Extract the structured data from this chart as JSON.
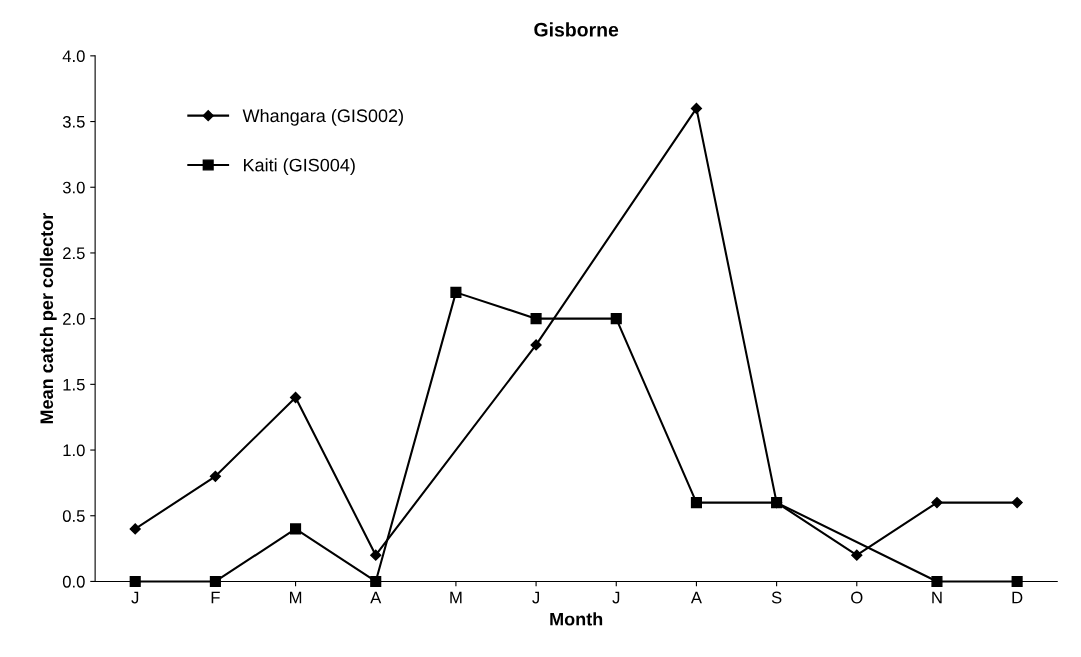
{
  "chart_data": {
    "type": "line",
    "title": "Gisborne",
    "xlabel": "Month",
    "ylabel": "Mean catch per collector",
    "categories": [
      "J",
      "F",
      "M",
      "A",
      "M",
      "J",
      "J",
      "A",
      "S",
      "O",
      "N",
      "D"
    ],
    "series": [
      {
        "name": "Whangara (GIS002)",
        "color": "#000000",
        "marker": "diamond",
        "values": [
          0.4,
          0.8,
          1.4,
          0.2,
          null,
          1.8,
          null,
          3.6,
          0.6,
          0.2,
          0.6,
          0.6
        ]
      },
      {
        "name": "Kaiti (GIS004)",
        "color": "#000000",
        "marker": "square",
        "values": [
          0.0,
          0.0,
          0.4,
          0.0,
          2.2,
          2.0,
          2.0,
          0.6,
          0.6,
          null,
          0.0,
          0.0
        ]
      }
    ],
    "ylim": [
      0,
      4
    ],
    "yticks": [
      {
        "value": 0,
        "label": "0.0"
      },
      {
        "value": 0.5,
        "label": "0.5"
      },
      {
        "value": 1,
        "label": "1.0"
      },
      {
        "value": 1.5,
        "label": "1.5"
      },
      {
        "value": 2,
        "label": "2.0"
      },
      {
        "value": 2.5,
        "label": "2.5"
      },
      {
        "value": 3,
        "label": "3.0"
      },
      {
        "value": 3.5,
        "label": "3.5"
      },
      {
        "value": 4,
        "label": "4.0"
      }
    ],
    "grid": false,
    "legend": "top left",
    "line_style": "solid"
  }
}
